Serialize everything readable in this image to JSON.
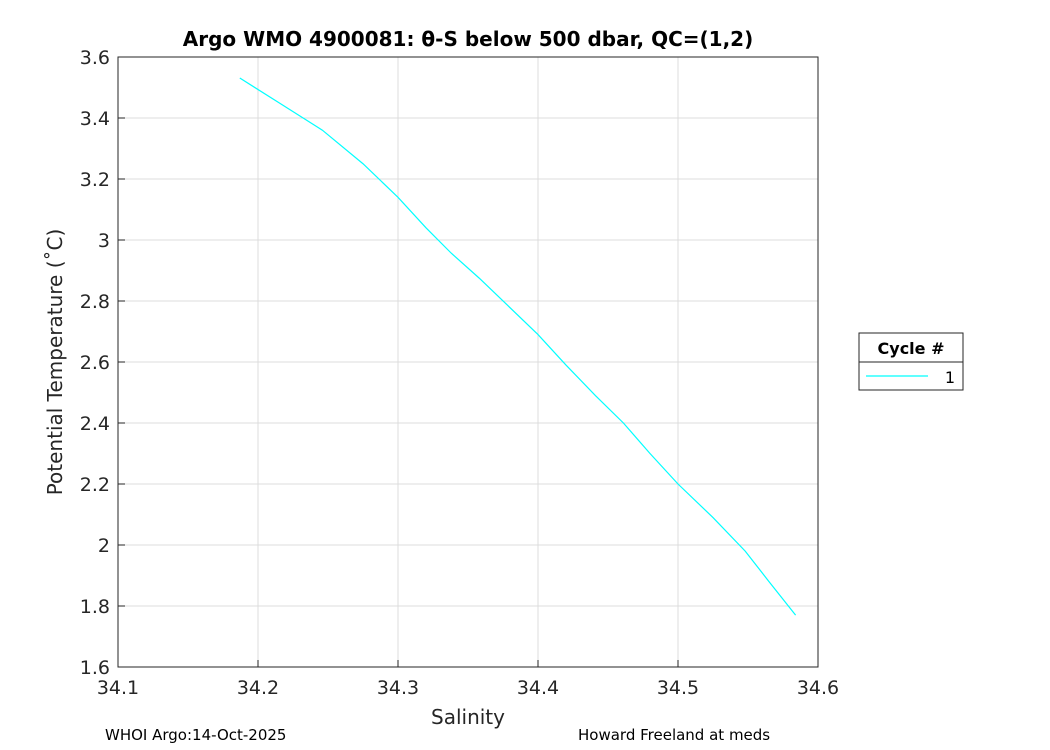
{
  "chart_data": {
    "type": "line",
    "title": "Argo WMO 4900081: θ-S below 500 dbar,  QC=(1,2)",
    "xlabel": "Salinity",
    "ylabel": "Potential Temperature (˚C)",
    "xlim": [
      34.1,
      34.6
    ],
    "ylim": [
      1.6,
      3.6
    ],
    "xticks": [
      "34.1",
      "34.2",
      "34.3",
      "34.4",
      "34.5",
      "34.6"
    ],
    "yticks": [
      "1.6",
      "1.8",
      "2",
      "2.2",
      "2.4",
      "2.6",
      "2.8",
      "3",
      "3.2",
      "3.4",
      "3.6"
    ],
    "grid": true,
    "legend": {
      "title": "Cycle #",
      "placement": "right-outside"
    },
    "series": [
      {
        "name": "1",
        "color": "#00ffff",
        "x": [
          34.187,
          34.215,
          34.246,
          34.275,
          34.3,
          34.32,
          34.338,
          34.358,
          34.378,
          34.4,
          34.42,
          34.441,
          34.461,
          34.48,
          34.5,
          34.525,
          34.548,
          34.565,
          34.584
        ],
        "y": [
          3.531,
          3.45,
          3.36,
          3.25,
          3.14,
          3.04,
          2.957,
          2.875,
          2.787,
          2.69,
          2.59,
          2.49,
          2.4,
          2.3,
          2.2,
          2.09,
          1.98,
          1.88,
          1.77
        ]
      }
    ]
  },
  "footer": {
    "left": "WHOI Argo:14-Oct-2025",
    "right": "Howard Freeland at meds"
  }
}
